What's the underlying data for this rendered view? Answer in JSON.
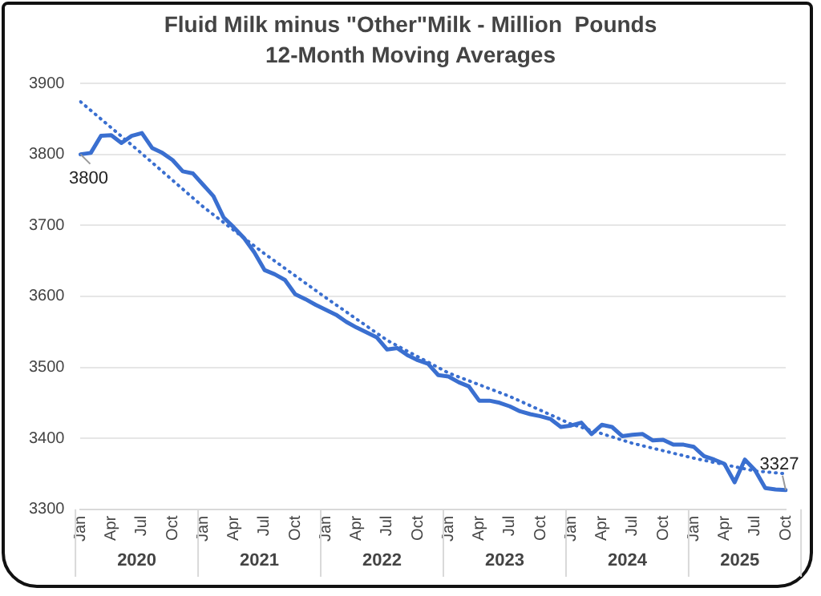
{
  "chart_data": {
    "type": "line",
    "title": "Fluid Milk minus \"Other\"Milk - Million  Pounds",
    "subtitle": "12-Month Moving Averages",
    "categories": [
      "Jan",
      null,
      null,
      "Apr",
      null,
      null,
      "Jul",
      null,
      null,
      "Oct",
      null,
      null,
      "Jan",
      null,
      null,
      "Apr",
      null,
      null,
      "Jul",
      null,
      null,
      "Oct",
      null,
      null,
      "Jan",
      null,
      null,
      "Apr",
      null,
      null,
      "Jul",
      null,
      null,
      "Oct",
      null,
      null,
      "Jan",
      null,
      null,
      "Apr",
      null,
      null,
      "Jul",
      null,
      null,
      "Oct",
      null,
      null,
      "Jan",
      null,
      null,
      "Apr",
      null,
      null,
      "Jul",
      null,
      null,
      "Oct",
      null,
      null,
      "Jan",
      null,
      null,
      "Apr",
      null,
      null,
      "Jul",
      null,
      null,
      "Oct"
    ],
    "annotations": [
      "2020",
      "2021",
      "2022",
      "2023",
      "2024",
      "2025"
    ],
    "series": [
      {
        "color": "#3a6fd0",
        "line_style": "solid",
        "values": [
          3800,
          3802,
          3826,
          3827,
          3816,
          3826,
          3830,
          3809,
          3802,
          3792,
          3776,
          3773,
          3757,
          3741,
          3711,
          3697,
          3682,
          3662,
          3637,
          3631,
          3623,
          3603,
          3596,
          3588,
          3581,
          3574,
          3564,
          3556,
          3549,
          3542,
          3525,
          3527,
          3517,
          3510,
          3505,
          3489,
          3487,
          3479,
          3473,
          3453,
          3453,
          3450,
          3445,
          3438,
          3434,
          3431,
          3427,
          3416,
          3418,
          3422,
          3406,
          3419,
          3416,
          3403,
          3405,
          3406,
          3397,
          3398,
          3391,
          3391,
          3388,
          3375,
          3370,
          3364,
          3338,
          3370,
          3355,
          3330,
          3328,
          3327
        ],
        "value_labels": [
          "3800",
          null,
          null,
          null,
          null,
          null,
          null,
          null,
          null,
          null,
          null,
          null,
          null,
          null,
          null,
          null,
          null,
          null,
          null,
          null,
          null,
          null,
          null,
          null,
          null,
          null,
          null,
          null,
          null,
          null,
          null,
          null,
          null,
          null,
          null,
          null,
          null,
          null,
          null,
          null,
          null,
          null,
          null,
          null,
          null,
          null,
          null,
          null,
          null,
          null,
          null,
          null,
          null,
          null,
          null,
          null,
          null,
          null,
          null,
          null,
          null,
          null,
          null,
          null,
          null,
          null,
          null,
          null,
          null,
          "3327"
        ]
      },
      {
        "type": "line",
        "color": "#3a6fd0",
        "line_style": "dotted",
        "values": [
          3874,
          null,
          null,
          null,
          null,
          null,
          3801,
          null,
          null,
          null,
          null,
          null,
          3726,
          null,
          null,
          null,
          null,
          null,
          3660,
          null,
          null,
          null,
          null,
          null,
          3598,
          null,
          null,
          null,
          null,
          null,
          3538,
          null,
          null,
          null,
          null,
          null,
          3492,
          null,
          null,
          null,
          null,
          null,
          3459,
          null,
          null,
          null,
          null,
          null,
          3420,
          null,
          null,
          null,
          null,
          null,
          3393,
          null,
          null,
          null,
          null,
          null,
          3372,
          null,
          null,
          null,
          null,
          null,
          3354,
          null,
          null,
          3350
        ]
      }
    ],
    "ylim": [
      3300,
      3900
    ],
    "yticks": [
      3300,
      3400,
      3500,
      3600,
      3700,
      3800,
      3900
    ],
    "grid": "y",
    "legend": false,
    "marker": "none"
  }
}
